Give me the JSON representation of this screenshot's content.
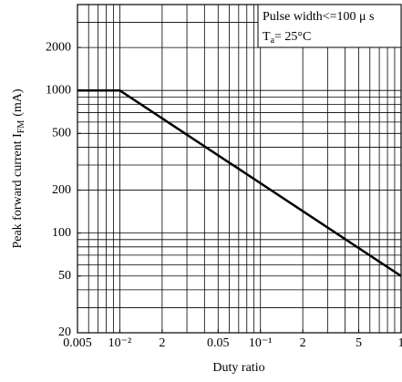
{
  "chart_data": {
    "type": "line",
    "xlabel": "Duty ratio",
    "ylabel": {
      "text": "Peak forward current I",
      "subscript": "FM",
      "unit": "(mA)"
    },
    "annotation_lines": [
      "Pulse width<=100 μ s",
      {
        "symbol": "T",
        "subscript": "a",
        "text": "= 25°C"
      }
    ],
    "x": [
      0.005,
      0.01,
      1
    ],
    "series": [
      {
        "values": [
          1000,
          1000,
          50
        ],
        "color": "#000000"
      }
    ],
    "xscale": "log",
    "yscale": "log",
    "xlim": [
      0.005,
      1
    ],
    "ylim": [
      20,
      4000
    ],
    "xticks": [
      0.005,
      {
        "value": 0.01,
        "label": "10⁻²"
      },
      {
        "value": 0.02,
        "label": "2"
      },
      0.05,
      {
        "value": 0.1,
        "label": "10⁻¹"
      },
      {
        "value": 0.2,
        "label": "2"
      },
      {
        "value": 0.5,
        "label": "5"
      },
      1
    ],
    "yticks": [
      20,
      50,
      100,
      200,
      500,
      1000,
      2000
    ],
    "xgrid": [
      0.005,
      0.006,
      0.007,
      0.008,
      0.009,
      0.01,
      0.02,
      0.03,
      0.04,
      0.05,
      0.06,
      0.07,
      0.08,
      0.09,
      0.1,
      0.2,
      0.3,
      0.4,
      0.5,
      0.6,
      0.7,
      0.8,
      0.9,
      1
    ],
    "ygrid": [
      20,
      30,
      40,
      50,
      60,
      70,
      80,
      90,
      100,
      200,
      300,
      400,
      500,
      600,
      700,
      800,
      900,
      1000,
      2000,
      3000,
      4000
    ]
  }
}
